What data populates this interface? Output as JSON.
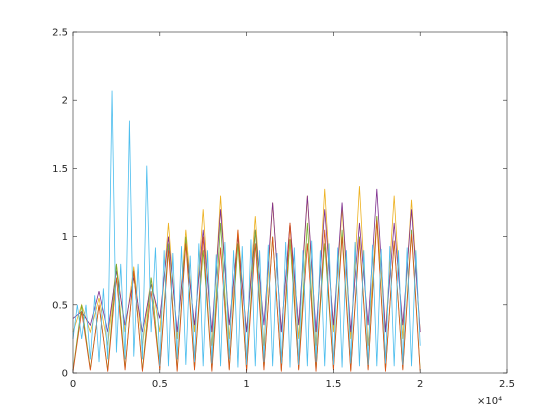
{
  "chart_data": {
    "type": "line",
    "xlim": [
      0,
      25000
    ],
    "ylim": [
      0,
      2.5
    ],
    "xticks": [
      0,
      {
        "value": 5000,
        "label": "0.5"
      },
      {
        "value": 10000,
        "label": "1"
      },
      {
        "value": 15000,
        "label": "1.5"
      },
      {
        "value": 20000,
        "label": "2"
      },
      {
        "value": 25000,
        "label": "2.5"
      }
    ],
    "yticks": [
      0,
      0.5,
      1,
      1.5,
      2,
      2.5
    ],
    "x_exponent_label": "×10⁴",
    "grid": false,
    "series": [
      {
        "color": "#EDB120",
        "x": [
          0,
          500,
          1000,
          1500,
          2000,
          2500,
          3000,
          3500,
          4000,
          4500,
          5000,
          5500,
          6000,
          6500,
          7000,
          7500,
          8000,
          8500,
          9000,
          9500,
          10000,
          10500,
          11000,
          11500,
          12000,
          12500,
          13000,
          13500,
          14000,
          14500,
          15000,
          15500,
          16000,
          16500,
          17000,
          17500,
          18000,
          18500,
          19000,
          19500,
          20000
        ],
        "values": [
          0.3,
          0.5,
          0.3,
          0.55,
          0.2,
          0.8,
          0.3,
          0.78,
          0.2,
          0.7,
          0.3,
          1.1,
          0.25,
          1.05,
          0.3,
          1.2,
          0.2,
          1.3,
          0.25,
          1.05,
          0.3,
          1.15,
          0.2,
          1.25,
          0.3,
          1.1,
          0.25,
          1.3,
          0.2,
          1.35,
          0.3,
          1.2,
          0.25,
          1.37,
          0.2,
          1.15,
          0.3,
          1.3,
          0.25,
          1.27,
          0.3
        ]
      },
      {
        "color": "#7E2F8E",
        "x": [
          0,
          500,
          1000,
          1500,
          2000,
          2500,
          3000,
          3500,
          4000,
          4500,
          5000,
          5500,
          6000,
          6500,
          7000,
          7500,
          8000,
          8500,
          9000,
          9500,
          10000,
          10500,
          11000,
          11500,
          12000,
          12500,
          13000,
          13500,
          14000,
          14500,
          15000,
          15500,
          16000,
          16500,
          17000,
          17500,
          18000,
          18500,
          19000,
          19500,
          20000
        ],
        "values": [
          0.4,
          0.45,
          0.35,
          0.6,
          0.3,
          0.75,
          0.35,
          0.7,
          0.3,
          0.65,
          0.4,
          1.0,
          0.3,
          0.95,
          0.35,
          1.05,
          0.3,
          1.2,
          0.35,
          1.0,
          0.3,
          1.05,
          0.35,
          1.25,
          0.3,
          1.1,
          0.35,
          1.3,
          0.3,
          1.2,
          0.35,
          1.25,
          0.3,
          1.1,
          0.35,
          1.35,
          0.3,
          1.1,
          0.35,
          1.2,
          0.3
        ]
      },
      {
        "color": "#77AC30",
        "x": [
          0,
          500,
          1000,
          1500,
          2000,
          2500,
          3000,
          3500,
          4000,
          4500,
          5000,
          5500,
          6000,
          6500,
          7000,
          7500,
          8000,
          8500,
          9000,
          9500,
          10000,
          10500,
          11000,
          11500,
          12000,
          12500,
          13000,
          13500,
          14000,
          14500,
          15000,
          15500,
          16000,
          16500,
          17000,
          17500,
          18000,
          18500,
          19000,
          19500,
          20000
        ],
        "values": [
          0.02,
          0.5,
          0.03,
          0.5,
          0.02,
          0.8,
          0.03,
          0.75,
          0.02,
          0.7,
          0.03,
          0.95,
          0.02,
          1.0,
          0.03,
          0.9,
          0.02,
          1.1,
          0.03,
          0.95,
          0.02,
          1.05,
          0.03,
          1.0,
          0.02,
          0.98,
          0.03,
          1.1,
          0.02,
          0.95,
          0.03,
          1.05,
          0.02,
          1.0,
          0.03,
          1.15,
          0.02,
          0.97,
          0.03,
          1.05,
          0.02
        ]
      },
      {
        "color": "#D95319",
        "x": [
          0,
          500,
          1000,
          1500,
          2000,
          2500,
          3000,
          3500,
          4000,
          4500,
          5000,
          5500,
          6000,
          6500,
          7000,
          7500,
          8000,
          8500,
          9000,
          9500,
          10000,
          10500,
          11000,
          11500,
          12000,
          12500,
          13000,
          13500,
          14000,
          14500,
          15000,
          15500,
          16000,
          16500,
          17000,
          17500,
          18000,
          18500,
          19000,
          19500,
          20000
        ],
        "values": [
          0.01,
          0.45,
          0.02,
          0.5,
          0.01,
          0.7,
          0.02,
          0.75,
          0.01,
          0.6,
          0.02,
          0.9,
          0.01,
          0.95,
          0.02,
          1.0,
          0.01,
          0.92,
          0.02,
          1.05,
          0.01,
          0.95,
          0.02,
          1.0,
          0.01,
          1.1,
          0.02,
          0.95,
          0.01,
          1.05,
          0.02,
          1.0,
          0.01,
          0.98,
          0.02,
          1.12,
          0.01,
          0.97,
          0.02,
          1.02,
          0.01
        ]
      },
      {
        "color": "#4DBEEE",
        "x": [
          0,
          250,
          500,
          750,
          1000,
          1250,
          1500,
          1750,
          2000,
          2250,
          2500,
          2750,
          3000,
          3250,
          3500,
          3750,
          4000,
          4250,
          4500,
          4750,
          5000,
          5250,
          5500,
          5750,
          6000,
          6250,
          6500,
          6750,
          7000,
          7250,
          7500,
          7750,
          8000,
          8250,
          8500,
          8750,
          9000,
          9250,
          9500,
          9750,
          10000,
          10250,
          10500,
          10750,
          11000,
          11250,
          11500,
          11750,
          12000,
          12250,
          12500,
          12750,
          13000,
          13250,
          13500,
          13750,
          14000,
          14250,
          14500,
          14750,
          15000,
          15250,
          15500,
          15750,
          16000,
          16250,
          16500,
          16750,
          17000,
          17250,
          17500,
          17750,
          18000,
          18250,
          18500,
          18750,
          19000,
          19250,
          19500,
          19750,
          20000
        ],
        "values": [
          0.25,
          0.5,
          0.25,
          0.5,
          0.1,
          0.57,
          0.08,
          0.62,
          0.1,
          2.07,
          0.15,
          0.8,
          0.1,
          1.85,
          0.12,
          0.8,
          0.1,
          1.52,
          0.3,
          0.92,
          0.05,
          0.9,
          0.05,
          0.88,
          0.1,
          0.93,
          0.06,
          0.86,
          0.08,
          0.95,
          0.05,
          0.9,
          0.07,
          0.87,
          0.05,
          0.96,
          0.1,
          0.9,
          0.04,
          0.93,
          0.06,
          0.98,
          0.05,
          0.9,
          0.08,
          0.94,
          0.05,
          0.88,
          0.07,
          0.96,
          0.04,
          0.92,
          0.06,
          0.9,
          0.05,
          0.97,
          0.08,
          0.9,
          0.05,
          0.95,
          0.06,
          0.92,
          0.04,
          0.9,
          0.07,
          0.96,
          0.05,
          0.9,
          0.06,
          0.94,
          0.05,
          0.91,
          0.07,
          0.93,
          0.05,
          0.9,
          0.06,
          0.92,
          0.05,
          0.9,
          0.2
        ]
      }
    ]
  }
}
